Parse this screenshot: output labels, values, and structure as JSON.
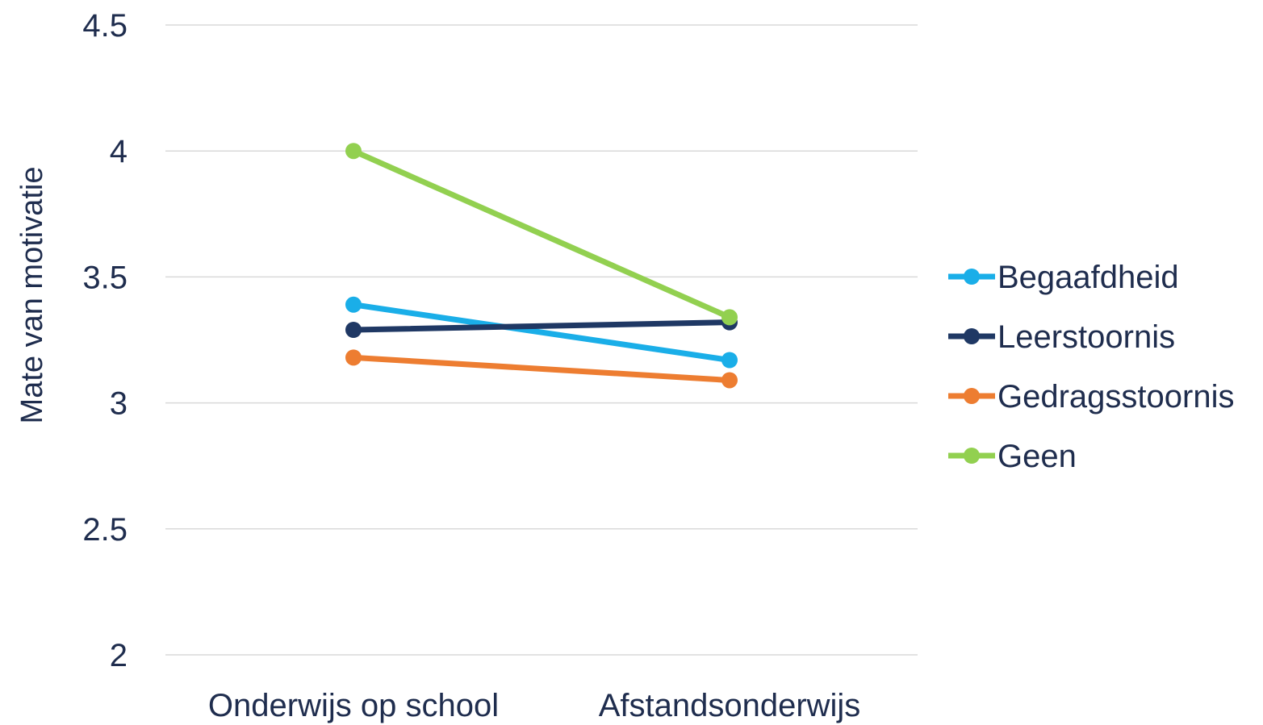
{
  "chart_data": {
    "type": "line",
    "title": "",
    "xlabel": "",
    "ylabel": "Mate van motivatie",
    "categories": [
      "Onderwijs op school",
      "Afstandsonderwijs"
    ],
    "ylim": [
      2,
      4.5
    ],
    "yticks": [
      2,
      2.5,
      3,
      3.5,
      4,
      4.5
    ],
    "ytick_labels": [
      "2",
      "2.5",
      "3",
      "3.5",
      "4",
      "4.5"
    ],
    "grid": true,
    "legend_position": "right",
    "series": [
      {
        "name": "Begaafdheid",
        "color": "#1aaee8",
        "values": [
          3.39,
          3.17
        ]
      },
      {
        "name": "Leerstoornis",
        "color": "#1f3864",
        "values": [
          3.29,
          3.32
        ]
      },
      {
        "name": "Gedragsstoornis",
        "color": "#ed7d31",
        "values": [
          3.18,
          3.09
        ]
      },
      {
        "name": "Geen",
        "color": "#92d050",
        "values": [
          4.0,
          3.34
        ]
      }
    ]
  }
}
